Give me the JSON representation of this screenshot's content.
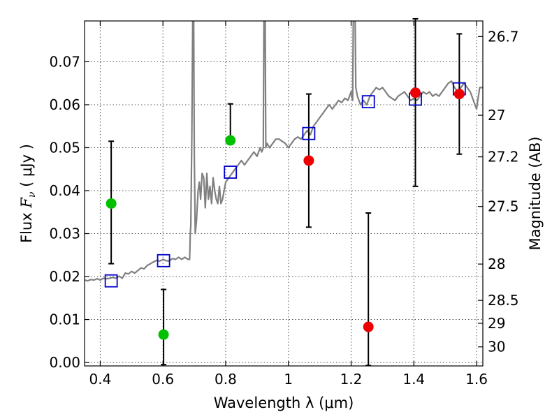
{
  "chart_data": {
    "type": "scatter",
    "title": "",
    "xlabel": "Wavelength  λ (μm)",
    "ylabel": "Flux  Fν  ( μJy )",
    "ylabel_parts": [
      "Flux ",
      "F",
      "ν",
      " ( μJy )"
    ],
    "y2label": "Magnitude (AB)",
    "xlim": [
      0.35,
      1.62
    ],
    "ylim": [
      -0.0008,
      0.0795
    ],
    "grid": true,
    "xticks": [
      0.4,
      0.6,
      0.8,
      1.0,
      1.2,
      1.4,
      1.6
    ],
    "xtick_labels": [
      "0.4",
      "0.6",
      "0.8",
      "1",
      "1.2",
      "1.4",
      "1.6"
    ],
    "yticks": [
      0.0,
      0.01,
      0.02,
      0.03,
      0.04,
      0.05,
      0.06,
      0.07
    ],
    "ytick_labels": [
      "0.00",
      "0.01",
      "0.02",
      "0.03",
      "0.04",
      "0.05",
      "0.06",
      "0.07"
    ],
    "y2ticks": [
      26.7,
      27,
      27.2,
      27.5,
      28,
      28.5,
      29,
      30
    ],
    "y2tick_labels": [
      "26.7",
      "27",
      "27.2",
      "27.5",
      "28",
      "28.5",
      "29",
      "30"
    ],
    "colors": {
      "spectrum": "#808080",
      "green_points": "#00c000",
      "red_points": "#ee0000",
      "model_squares": "#0000cc",
      "errorbars": "#000000"
    },
    "series": [
      {
        "kind": "line",
        "points": [
          [
            0.35,
            0.0192
          ],
          [
            0.36,
            0.019
          ],
          [
            0.37,
            0.0193
          ],
          [
            0.38,
            0.0192
          ],
          [
            0.39,
            0.0195
          ],
          [
            0.4,
            0.0192
          ],
          [
            0.41,
            0.0196
          ],
          [
            0.42,
            0.0195
          ],
          [
            0.43,
            0.0196
          ],
          [
            0.44,
            0.0198
          ],
          [
            0.45,
            0.0196
          ],
          [
            0.46,
            0.0201
          ],
          [
            0.47,
            0.0196
          ],
          [
            0.48,
            0.0208
          ],
          [
            0.49,
            0.0206
          ],
          [
            0.5,
            0.0212
          ],
          [
            0.51,
            0.0208
          ],
          [
            0.52,
            0.0214
          ],
          [
            0.53,
            0.022
          ],
          [
            0.54,
            0.0218
          ],
          [
            0.55,
            0.0226
          ],
          [
            0.56,
            0.023
          ],
          [
            0.57,
            0.0234
          ],
          [
            0.58,
            0.0238
          ],
          [
            0.59,
            0.0236
          ],
          [
            0.6,
            0.024
          ],
          [
            0.61,
            0.0237
          ],
          [
            0.62,
            0.0236
          ],
          [
            0.63,
            0.0242
          ],
          [
            0.64,
            0.024
          ],
          [
            0.65,
            0.0245
          ],
          [
            0.66,
            0.024
          ],
          [
            0.67,
            0.0245
          ],
          [
            0.68,
            0.024
          ],
          [
            0.685,
            0.024
          ],
          [
            0.687,
            0.03
          ],
          [
            0.689,
            0.032
          ],
          [
            0.692,
            0.052
          ],
          [
            0.695,
            0.0795
          ],
          [
            0.698,
            0.0795
          ],
          [
            0.7,
            0.048
          ],
          [
            0.703,
            0.03
          ],
          [
            0.707,
            0.033
          ],
          [
            0.712,
            0.04
          ],
          [
            0.716,
            0.042
          ],
          [
            0.72,
            0.038
          ],
          [
            0.725,
            0.044
          ],
          [
            0.73,
            0.043
          ],
          [
            0.735,
            0.036
          ],
          [
            0.74,
            0.044
          ],
          [
            0.745,
            0.038
          ],
          [
            0.75,
            0.041
          ],
          [
            0.755,
            0.037
          ],
          [
            0.76,
            0.043
          ],
          [
            0.765,
            0.04
          ],
          [
            0.77,
            0.038
          ],
          [
            0.775,
            0.037
          ],
          [
            0.78,
            0.041
          ],
          [
            0.785,
            0.037
          ],
          [
            0.79,
            0.038
          ],
          [
            0.8,
            0.042
          ],
          [
            0.81,
            0.043
          ],
          [
            0.82,
            0.044
          ],
          [
            0.83,
            0.045
          ],
          [
            0.84,
            0.046
          ],
          [
            0.85,
            0.047
          ],
          [
            0.86,
            0.046
          ],
          [
            0.87,
            0.047
          ],
          [
            0.88,
            0.048
          ],
          [
            0.89,
            0.049
          ],
          [
            0.9,
            0.048
          ],
          [
            0.905,
            0.049
          ],
          [
            0.91,
            0.05
          ],
          [
            0.915,
            0.049
          ],
          [
            0.92,
            0.05
          ],
          [
            0.922,
            0.0795
          ],
          [
            0.926,
            0.0795
          ],
          [
            0.928,
            0.05
          ],
          [
            0.932,
            0.051
          ],
          [
            0.94,
            0.05
          ],
          [
            0.95,
            0.051
          ],
          [
            0.96,
            0.052
          ],
          [
            0.97,
            0.052
          ],
          [
            0.98,
            0.0515
          ],
          [
            0.99,
            0.051
          ],
          [
            1.0,
            0.05
          ],
          [
            1.01,
            0.051
          ],
          [
            1.02,
            0.052
          ],
          [
            1.03,
            0.0525
          ],
          [
            1.04,
            0.052
          ],
          [
            1.05,
            0.053
          ],
          [
            1.06,
            0.054
          ],
          [
            1.07,
            0.053
          ],
          [
            1.08,
            0.055
          ],
          [
            1.09,
            0.056
          ],
          [
            1.1,
            0.057
          ],
          [
            1.11,
            0.058
          ],
          [
            1.12,
            0.059
          ],
          [
            1.13,
            0.06
          ],
          [
            1.14,
            0.059
          ],
          [
            1.15,
            0.06
          ],
          [
            1.16,
            0.061
          ],
          [
            1.17,
            0.0605
          ],
          [
            1.18,
            0.0615
          ],
          [
            1.19,
            0.061
          ],
          [
            1.2,
            0.063
          ],
          [
            1.205,
            0.061
          ],
          [
            1.207,
            0.0795
          ],
          [
            1.213,
            0.0795
          ],
          [
            1.215,
            0.064
          ],
          [
            1.22,
            0.062
          ],
          [
            1.23,
            0.06
          ],
          [
            1.24,
            0.061
          ],
          [
            1.25,
            0.06
          ],
          [
            1.26,
            0.062
          ],
          [
            1.27,
            0.063
          ],
          [
            1.28,
            0.064
          ],
          [
            1.29,
            0.0635
          ],
          [
            1.3,
            0.064
          ],
          [
            1.31,
            0.063
          ],
          [
            1.32,
            0.062
          ],
          [
            1.33,
            0.0615
          ],
          [
            1.34,
            0.061
          ],
          [
            1.35,
            0.062
          ],
          [
            1.36,
            0.0625
          ],
          [
            1.37,
            0.063
          ],
          [
            1.38,
            0.062
          ],
          [
            1.39,
            0.061
          ],
          [
            1.4,
            0.0615
          ],
          [
            1.41,
            0.061
          ],
          [
            1.42,
            0.062
          ],
          [
            1.43,
            0.063
          ],
          [
            1.44,
            0.0625
          ],
          [
            1.45,
            0.063
          ],
          [
            1.46,
            0.062
          ],
          [
            1.47,
            0.0625
          ],
          [
            1.48,
            0.062
          ],
          [
            1.49,
            0.063
          ],
          [
            1.5,
            0.064
          ],
          [
            1.51,
            0.065
          ],
          [
            1.52,
            0.0655
          ],
          [
            1.53,
            0.064
          ],
          [
            1.54,
            0.063
          ],
          [
            1.55,
            0.064
          ],
          [
            1.56,
            0.065
          ],
          [
            1.57,
            0.064
          ],
          [
            1.58,
            0.063
          ],
          [
            1.59,
            0.061
          ],
          [
            1.6,
            0.059
          ],
          [
            1.61,
            0.064
          ],
          [
            1.62,
            0.064
          ]
        ]
      },
      {
        "kind": "markers",
        "marker": "circle",
        "points": [
          {
            "x": 0.435,
            "y": 0.037,
            "err_low": 0.014,
            "err_high": 0.0145
          },
          {
            "x": 0.602,
            "y": 0.0065,
            "err_low": 0.007,
            "err_high": 0.0105
          },
          {
            "x": 0.815,
            "y": 0.0517,
            "err_low": 0.0007,
            "err_high": 0.0085
          }
        ]
      },
      {
        "kind": "markers",
        "marker": "circle",
        "points": [
          {
            "x": 1.065,
            "y": 0.047,
            "err_low": 0.0155,
            "err_high": 0.0155
          },
          {
            "x": 1.255,
            "y": 0.0083,
            "err_low": 0.009,
            "err_high": 0.0265
          },
          {
            "x": 1.405,
            "y": 0.0628,
            "err_low": 0.0218,
            "err_high": 0.0172
          },
          {
            "x": 1.545,
            "y": 0.0625,
            "err_low": 0.014,
            "err_high": 0.014
          }
        ]
      },
      {
        "kind": "markers",
        "marker": "square-open",
        "points": [
          {
            "x": 0.435,
            "y": 0.019
          },
          {
            "x": 0.602,
            "y": 0.0237
          },
          {
            "x": 0.815,
            "y": 0.0443
          },
          {
            "x": 1.065,
            "y": 0.0533
          },
          {
            "x": 1.255,
            "y": 0.0607
          },
          {
            "x": 1.405,
            "y": 0.0613
          },
          {
            "x": 1.545,
            "y": 0.0637
          }
        ]
      }
    ]
  }
}
